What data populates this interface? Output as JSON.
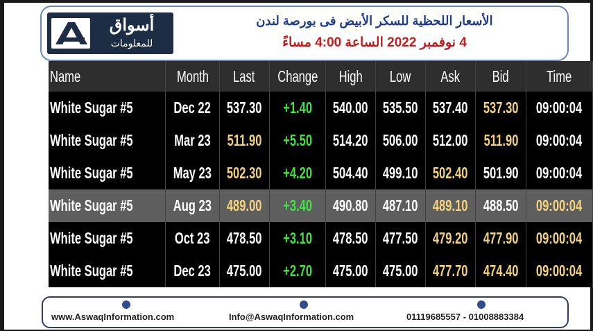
{
  "logo": {
    "arabic": "أسواق",
    "subtitle": "للمعلومات"
  },
  "header": {
    "title": "الأسعار اللحظية للسكر الأبيض فى بورصة لندن",
    "subtitle": "4 نوفمبر 2022 الساعة 4:00 مساءً"
  },
  "table": {
    "header": [
      "Name",
      "Month",
      "Last",
      "Change",
      "High",
      "Low",
      "Ask",
      "Bid",
      "Time"
    ],
    "header_background": "#2e2e2e",
    "rows": [
      [
        "White Sugar #5",
        "Dec 22",
        "537.30",
        "+1.40",
        "540.00",
        "535.50",
        "537.40",
        "537.30",
        "09:00:04"
      ],
      [
        "White Sugar #5",
        "Mar 23",
        "511.90",
        "+5.50",
        "514.20",
        "506.00",
        "512.00",
        "511.90",
        "09:00:04"
      ],
      [
        "White Sugar #5",
        "May 23",
        "502.30",
        "+4.20",
        "504.40",
        "499.10",
        "502.40",
        "501.90",
        "09:00:04"
      ],
      [
        "White Sugar #5",
        "Aug 23",
        "489.00",
        "+3.40",
        "490.80",
        "487.10",
        "489.10",
        "488.50",
        "09:00:04"
      ],
      [
        "White Sugar #5",
        "Oct 23",
        "478.50",
        "+3.10",
        "478.50",
        "477.50",
        "479.20",
        "477.90",
        "09:00:04"
      ],
      [
        "White Sugar #5",
        "Dec 23",
        "475.00",
        "+2.70",
        "475.00",
        "475.00",
        "477.70",
        "474.40",
        "09:00:04"
      ]
    ],
    "row_backgrounds": [
      "#000000",
      "#000000",
      "#000000",
      "#5e5e5e",
      "#000000",
      "#000000"
    ],
    "text_colors": [
      [
        "#ffffff",
        "#ffffff",
        "#ffffff",
        "#3fe23f",
        "#ffffff",
        "#ffffff",
        "#ffffff",
        "#f4d27c",
        "#ffffff"
      ],
      [
        "#ffffff",
        "#ffffff",
        "#f4d27c",
        "#3fe23f",
        "#ffffff",
        "#ffffff",
        "#ffffff",
        "#f4d27c",
        "#ffffff"
      ],
      [
        "#ffffff",
        "#ffffff",
        "#f4d27c",
        "#3fe23f",
        "#ffffff",
        "#ffffff",
        "#f4d27c",
        "#ffffff",
        "#ffffff"
      ],
      [
        "#ffffff",
        "#ffffff",
        "#f4d27c",
        "#3fe23f",
        "#ffffff",
        "#ffffff",
        "#f4d27c",
        "#ffffff",
        "#f4d27c"
      ],
      [
        "#ffffff",
        "#ffffff",
        "#ffffff",
        "#3fe23f",
        "#ffffff",
        "#ffffff",
        "#f4d27c",
        "#f4d27c",
        "#f4d27c"
      ],
      [
        "#ffffff",
        "#ffffff",
        "#ffffff",
        "#3fe23f",
        "#ffffff",
        "#ffffff",
        "#f4d27c",
        "#f4d27c",
        "#f4d27c"
      ]
    ]
  },
  "footer": {
    "website": "www.AswaqInformation.com",
    "email": "Info@AswaqInformation.com",
    "phones": "01119685557 - 01008883384"
  }
}
